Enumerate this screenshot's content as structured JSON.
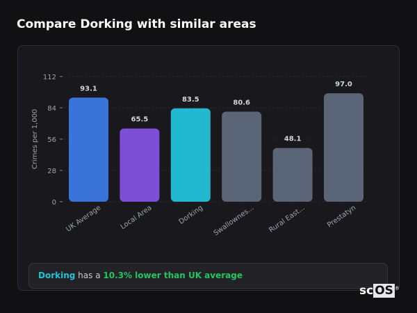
{
  "title": "Compare Dorking with similar areas",
  "chart_data": {
    "type": "bar",
    "categories": [
      "UK Average",
      "Local Area",
      "Dorking",
      "Swallownes...",
      "Rural East...",
      "Prestatyn"
    ],
    "values": [
      93.1,
      65.5,
      83.5,
      80.6,
      48.1,
      97.0
    ],
    "data_labels": [
      "93.1",
      "65.5",
      "83.5",
      "80.6",
      "48.1",
      "97.0"
    ],
    "colors": [
      "#3b74d9",
      "#7c4fd6",
      "#22b8cf",
      "#5b6578",
      "#5b6578",
      "#5b6578"
    ],
    "ylabel": "Crimes per 1,000",
    "yticks": [
      0,
      28,
      56,
      84,
      112
    ],
    "ylim": [
      0,
      112
    ],
    "grid": true
  },
  "footer": {
    "area": "Dorking",
    "middle": " has a ",
    "comparison": "10.3% lower than UK average"
  },
  "logo": {
    "text_a": "sc",
    "text_b": "OS",
    "mark": "®"
  }
}
